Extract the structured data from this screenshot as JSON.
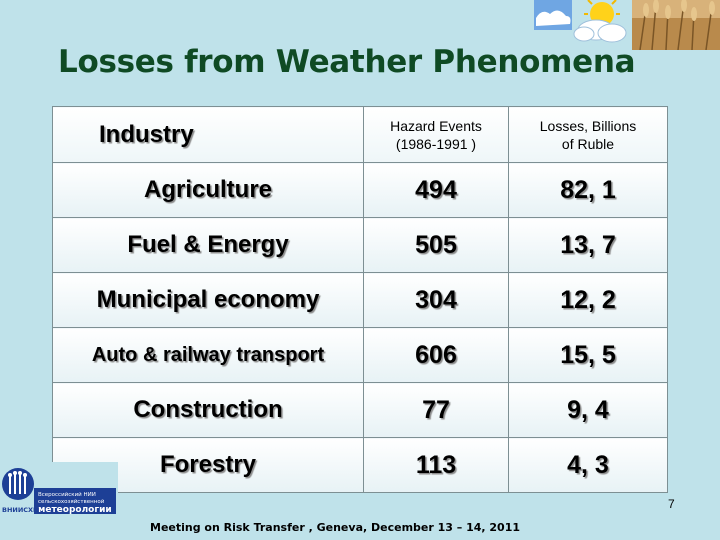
{
  "slide": {
    "title": "Losses from Weather Phenomena",
    "page_number": "7",
    "footer": "Meeting on Risk Transfer , Geneva, December 13 – 14, 2011"
  },
  "table": {
    "headers": {
      "industry": "Industry",
      "hazard_line1": "Hazard Events",
      "hazard_line2": "(1986-1991 )",
      "losses_line1": "Losses, Billions",
      "losses_line2": "of Ruble"
    },
    "rows": [
      {
        "industry": "Agriculture",
        "events": "494",
        "losses": "82, 1"
      },
      {
        "industry": "Fuel & Energy",
        "events": "505",
        "losses": "13, 7"
      },
      {
        "industry": "Municipal economy",
        "events": "304",
        "losses": "12, 2"
      },
      {
        "industry": "Auto & railway transport",
        "events": "606",
        "losses": "15, 5"
      },
      {
        "industry": "Construction",
        "events": "77",
        "losses": "9, 4"
      },
      {
        "industry": "Forestry",
        "events": "113",
        "losses": "4, 3"
      }
    ]
  },
  "logo": {
    "line1": "Всероссийский НИИ",
    "line2": "сельскохозяйственной",
    "line3": "метеорологии",
    "abbr": "ВНИИСХМ"
  },
  "colors": {
    "background": "#bfe2ea",
    "title": "#0f4a24",
    "logo_blue": "#1d3f96"
  }
}
